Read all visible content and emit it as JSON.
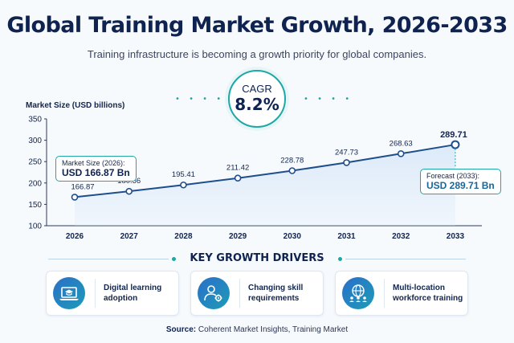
{
  "header": {
    "title": "Global Training Market Growth, 2026-2033",
    "subtitle": "Training infrastructure is becoming a growth priority for global companies."
  },
  "cagr": {
    "label": "CAGR",
    "value": "8.2%"
  },
  "chart_data": {
    "type": "line",
    "ylabel": "Market Size (USD billions)",
    "x": [
      "2026",
      "2027",
      "2028",
      "2029",
      "2030",
      "2031",
      "2032",
      "2033"
    ],
    "values": [
      166.87,
      180.56,
      195.41,
      211.42,
      228.78,
      247.73,
      268.63,
      289.71
    ],
    "data_labels": [
      "166.87",
      "180.56",
      "195.41",
      "211.42",
      "228.78",
      "247.73",
      "268.63",
      "289.71"
    ],
    "ylim": [
      100,
      350
    ],
    "yticks": [
      "100",
      "150",
      "200",
      "250",
      "300",
      "350"
    ],
    "grid": false,
    "area_fill": true,
    "line_color": "#1f4e8c",
    "fill_color": "#dbe9f8"
  },
  "callouts": {
    "start": {
      "label": "Market Size (2026):",
      "value": "USD 166.87 Bn"
    },
    "end": {
      "label": "Forecast (2033):",
      "value": "USD 289.71 Bn"
    }
  },
  "drivers": {
    "heading": "KEY GROWTH DRIVERS",
    "items": [
      {
        "label": "Digital learning adoption",
        "icon": "laptop-graduation-cap-icon"
      },
      {
        "label": "Changing skill requirements",
        "icon": "person-gear-icon"
      },
      {
        "label": "Multi-location workforce training",
        "icon": "globe-people-icon"
      }
    ]
  },
  "source": {
    "label": "Source:",
    "text": "Coherent Market Insights, Training Market"
  },
  "colors": {
    "accent": "#1fa7a7",
    "navy": "#0f2350",
    "blue": "#17679b"
  }
}
